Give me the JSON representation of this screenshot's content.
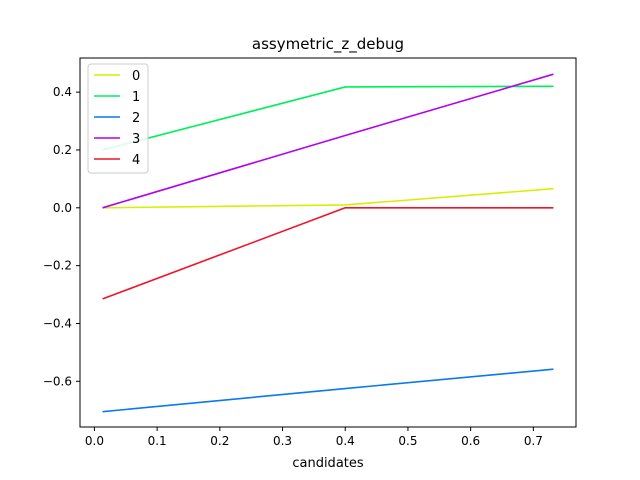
{
  "chart_data": {
    "type": "line",
    "title": "assymetric_z_debug",
    "xlabel": "candidates",
    "ylabel": "",
    "xlim": [
      -0.023,
      0.768
    ],
    "ylim": [
      -0.758,
      0.518
    ],
    "xticks": [
      0.0,
      0.1,
      0.2,
      0.3,
      0.4,
      0.5,
      0.6,
      0.7
    ],
    "xtick_labels": [
      "0.0",
      "0.1",
      "0.2",
      "0.3",
      "0.4",
      "0.5",
      "0.6",
      "0.7"
    ],
    "yticks": [
      -0.6,
      -0.4,
      -0.2,
      0.0,
      0.2,
      0.4
    ],
    "ytick_labels": [
      "−0.6",
      "−0.4",
      "−0.2",
      "0.0",
      "0.2",
      "0.4"
    ],
    "grid": false,
    "legend_position": "upper-left",
    "x": [
      0.013,
      0.4,
      0.732
    ],
    "series": [
      {
        "name": "0",
        "color": "#d4f000",
        "values": [
          0.0,
          0.01,
          0.066
        ]
      },
      {
        "name": "1",
        "color": "#00f05a",
        "values": [
          0.2,
          0.418,
          0.42
        ]
      },
      {
        "name": "2",
        "color": "#0a78f0",
        "values": [
          -0.705,
          -0.625,
          -0.558
        ]
      },
      {
        "name": "3",
        "color": "#b400f0",
        "values": [
          0.0,
          0.25,
          0.462
        ]
      },
      {
        "name": "4",
        "color": "#f01428",
        "values": [
          -0.315,
          0.0,
          0.0
        ]
      }
    ]
  }
}
